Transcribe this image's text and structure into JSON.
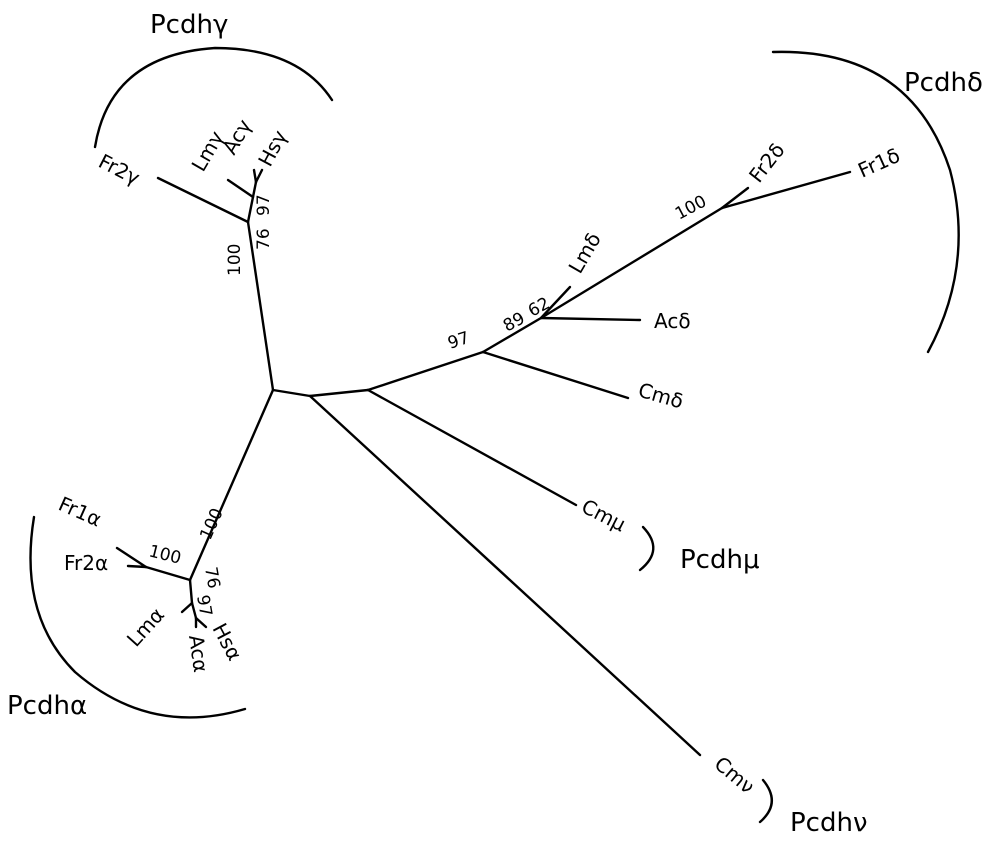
{
  "diagram": {
    "type": "unrooted phylogenetic tree",
    "leaves": {
      "fr2g": "Fr2γ",
      "lmg": "Lmγ",
      "acg": "Acγ",
      "hsg": "Hsγ",
      "fr2d": "Fr2δ",
      "fr1d": "Fr1δ",
      "lmd": "Lmδ",
      "acd": "Acδ",
      "cmd": "Cmδ",
      "cmmu": "Cmμ",
      "cmnu": "Cmν",
      "fr1a": "Fr1α",
      "fr2a": "Fr2α",
      "lma": "Lmα",
      "hsa": "Hsα",
      "aca": "Acα"
    },
    "groups": {
      "gamma": "Pcdhγ",
      "delta": "Pcdhδ",
      "mu": "Pcdhμ",
      "nu": "Pcdhν",
      "alpha": "Pcdhα"
    },
    "bootstrap": {
      "gamma_100": "100",
      "gamma_76": "76",
      "gamma_97": "97",
      "delta_97": "97",
      "delta_89": "89",
      "delta_62": "62",
      "delta_100": "100",
      "alpha_100_stem": "100",
      "alpha_100_fr": "100",
      "alpha_76": "76",
      "alpha_97": "97"
    }
  }
}
